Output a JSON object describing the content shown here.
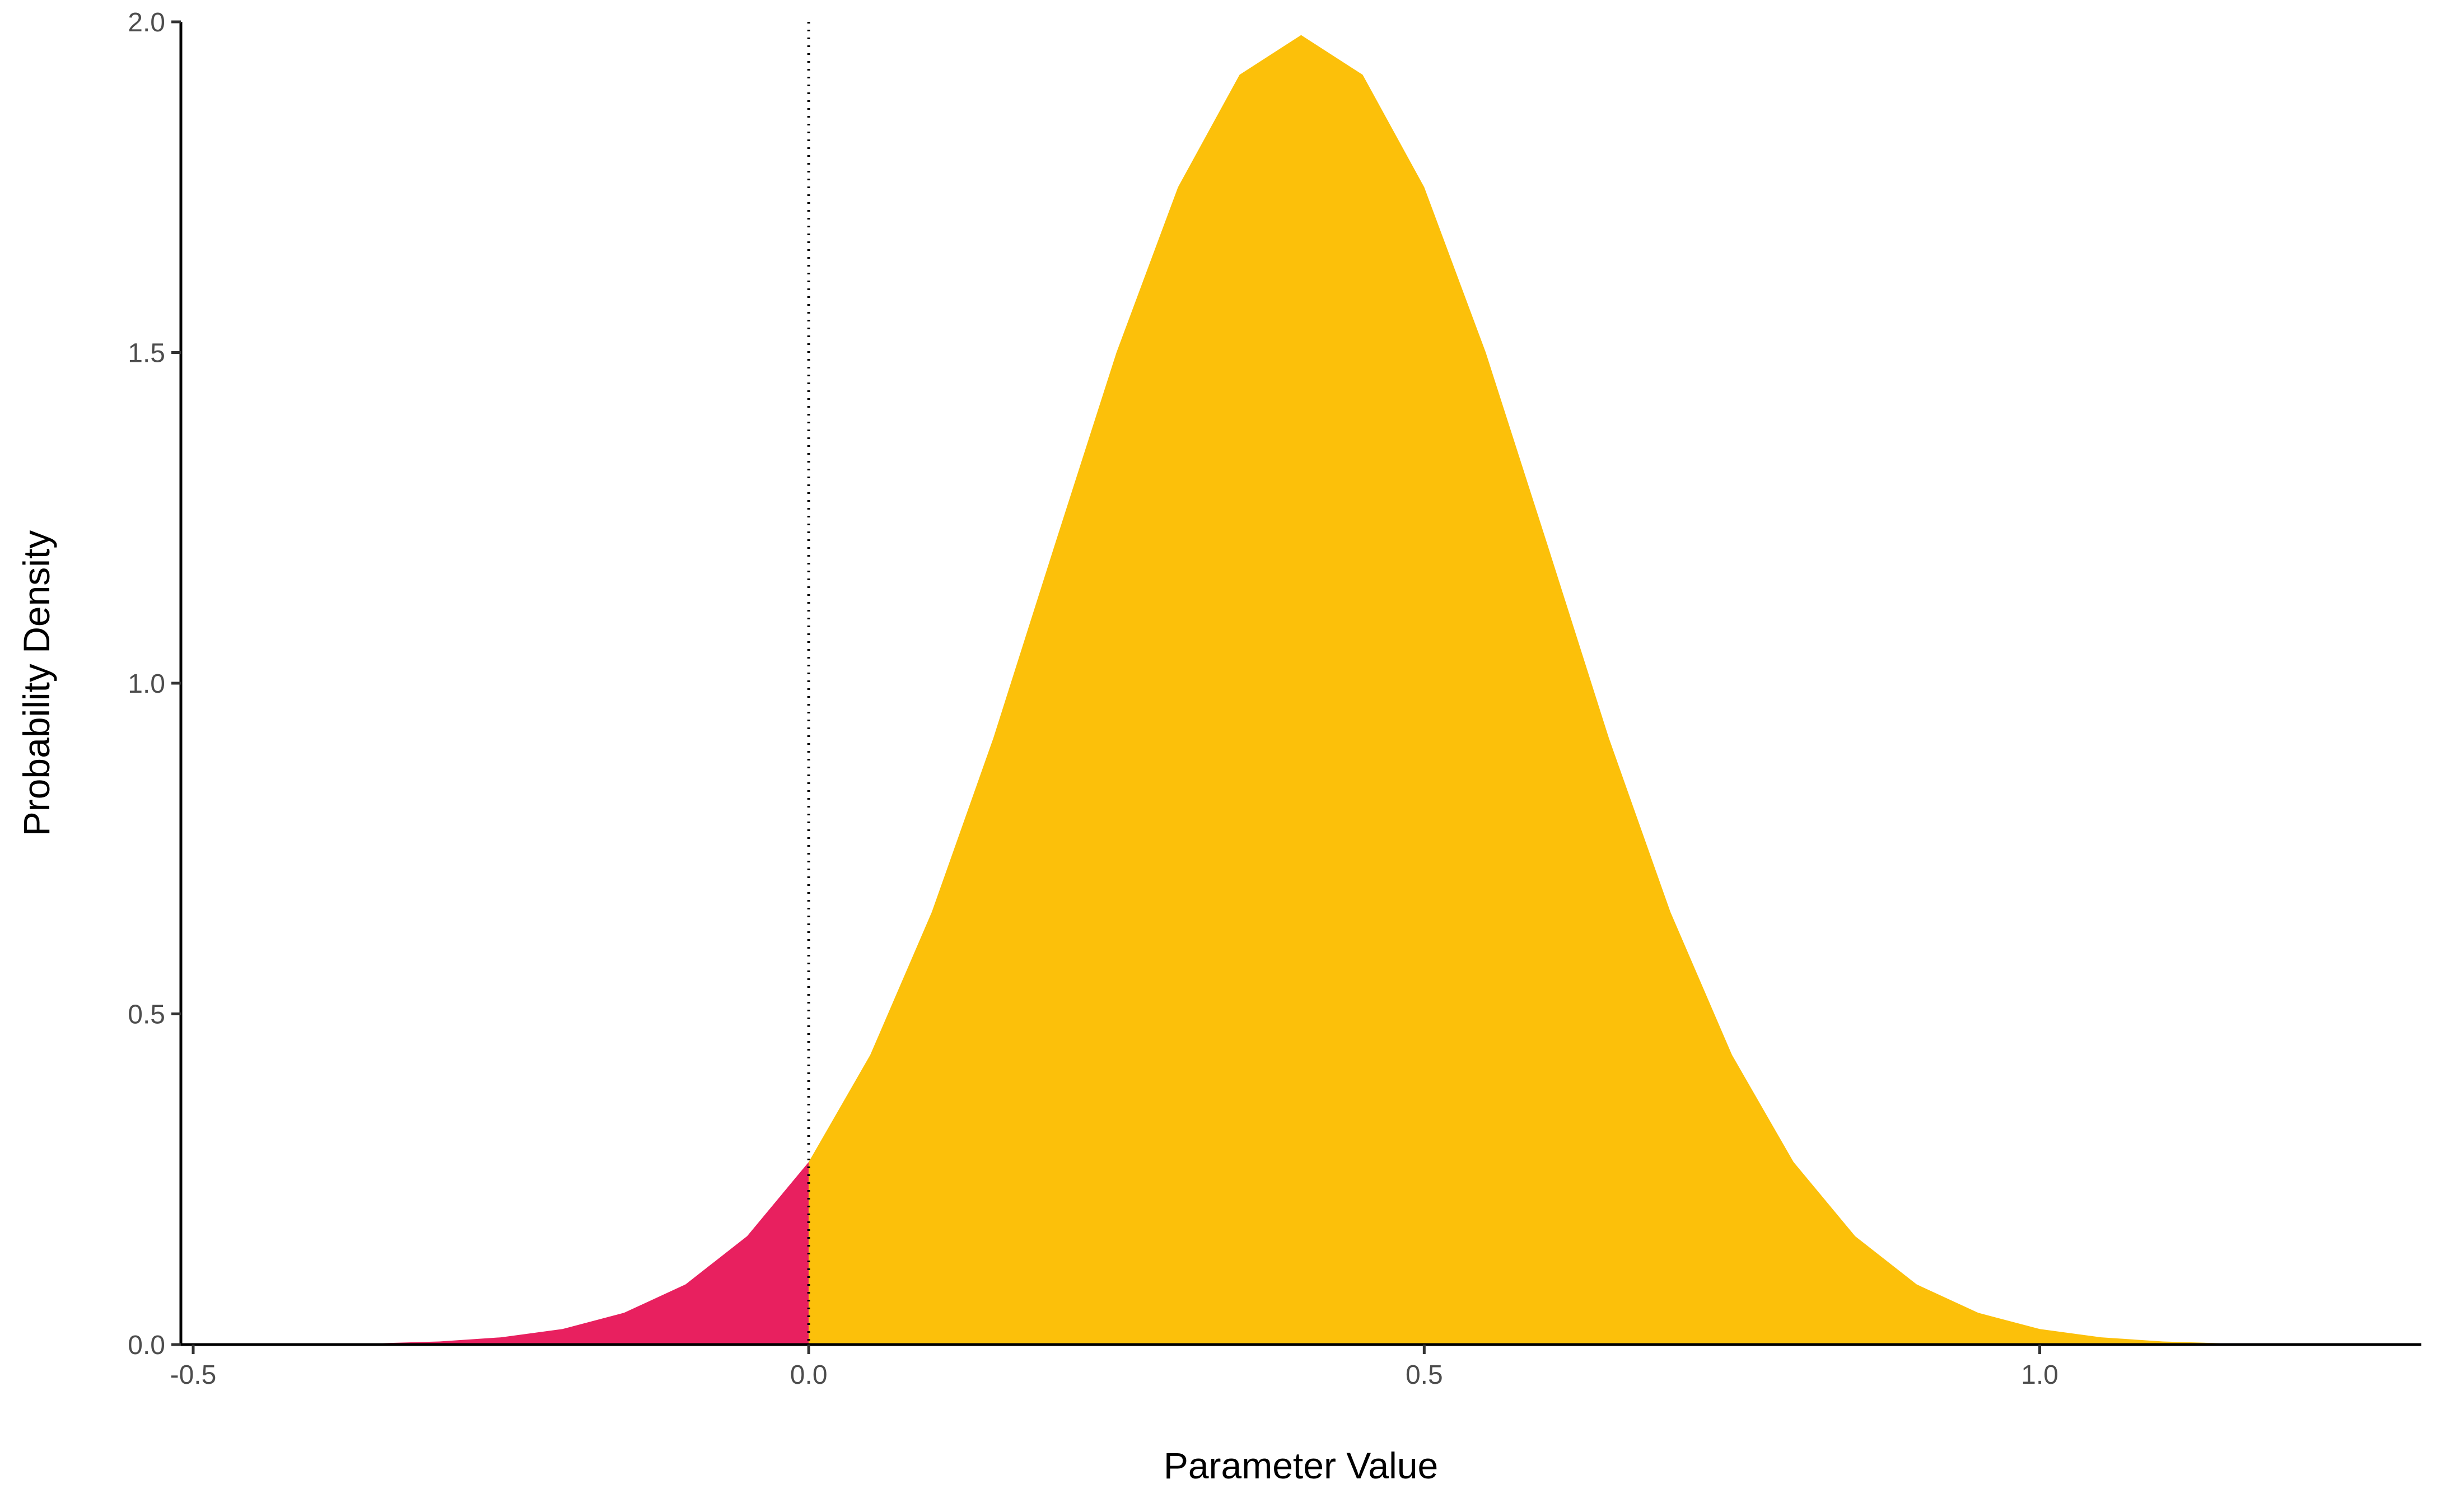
{
  "chart_data": {
    "type": "area",
    "x_label": "Parameter Value",
    "y_label": "Probability Density",
    "series": [
      {
        "color": "#e8205f",
        "x": [
          -0.35,
          -0.3,
          -0.25,
          -0.2,
          -0.15,
          -0.1,
          -0.05,
          0
        ],
        "values": [
          0.0019,
          0.0047,
          0.0109,
          0.0235,
          0.048,
          0.091,
          0.164,
          0.276
        ]
      },
      {
        "color": "#fcc00a",
        "x": [
          0,
          0.05,
          0.1,
          0.15,
          0.2,
          0.25,
          0.3,
          0.35,
          0.4,
          0.45,
          0.5,
          0.55,
          0.6,
          0.65,
          0.7,
          0.75,
          0.8,
          0.85,
          0.9,
          0.95,
          1.0,
          1.05,
          1.1,
          1.15
        ],
        "values": [
          0.276,
          0.438,
          0.654,
          0.917,
          1.21,
          1.5,
          1.75,
          1.92,
          1.98,
          1.92,
          1.75,
          1.5,
          1.21,
          0.917,
          0.654,
          0.438,
          0.276,
          0.164,
          0.091,
          0.048,
          0.0235,
          0.0109,
          0.0047,
          0.0019
        ]
      }
    ],
    "vline": 0,
    "xlim": [
      -0.51,
      1.31
    ],
    "ylim": [
      0,
      2.0
    ],
    "xticks": [
      -0.5,
      {
        "value": 0,
        "label": "0.0"
      },
      0.5,
      {
        "value": 1,
        "label": "1.0"
      }
    ],
    "yticks": [
      {
        "value": 0,
        "label": "0.0"
      },
      0.5,
      {
        "value": 1,
        "label": "1.0"
      },
      1.5,
      {
        "value": 2,
        "label": "2.0"
      }
    ],
    "grid": false
  }
}
